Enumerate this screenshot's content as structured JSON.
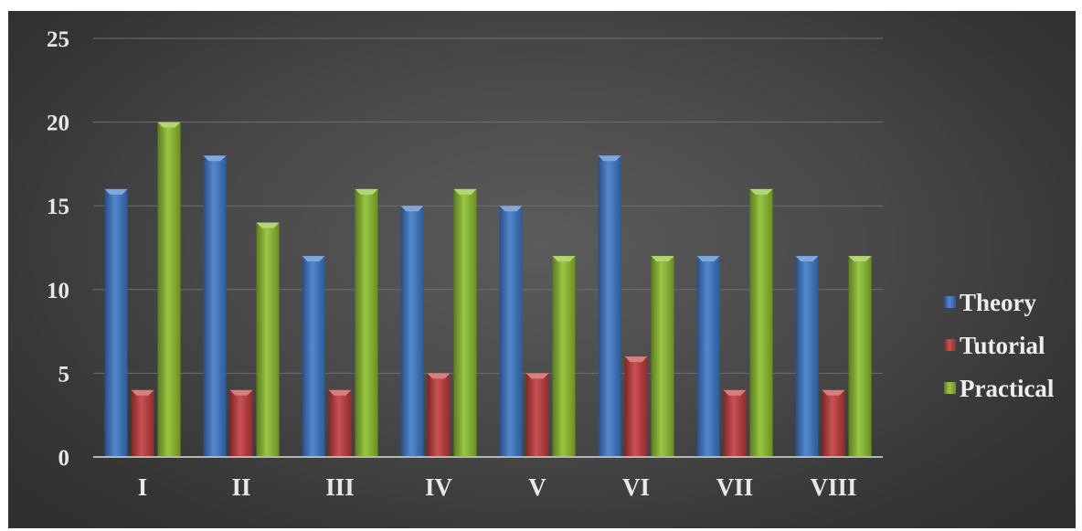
{
  "chart_data": {
    "type": "bar",
    "title": "",
    "xlabel": "",
    "ylabel": "",
    "categories": [
      "I",
      "II",
      "III",
      "IV",
      "V",
      "VI",
      "VII",
      "VIII"
    ],
    "series": [
      {
        "name": "Theory",
        "values": [
          16,
          18,
          12,
          15,
          15,
          18,
          12,
          12
        ],
        "color": "#3d78c9"
      },
      {
        "name": "Tutorial",
        "values": [
          4,
          4,
          4,
          5,
          5,
          6,
          4,
          4
        ],
        "color": "#c0393b"
      },
      {
        "name": "Practical",
        "values": [
          20,
          14,
          16,
          16,
          12,
          12,
          16,
          12
        ],
        "color": "#8cbf2c"
      }
    ],
    "ylim": [
      0,
      25
    ],
    "yticks": [
      "0",
      "5",
      "10",
      "15",
      "20",
      "25"
    ],
    "grid": true,
    "legend_position": "right"
  }
}
